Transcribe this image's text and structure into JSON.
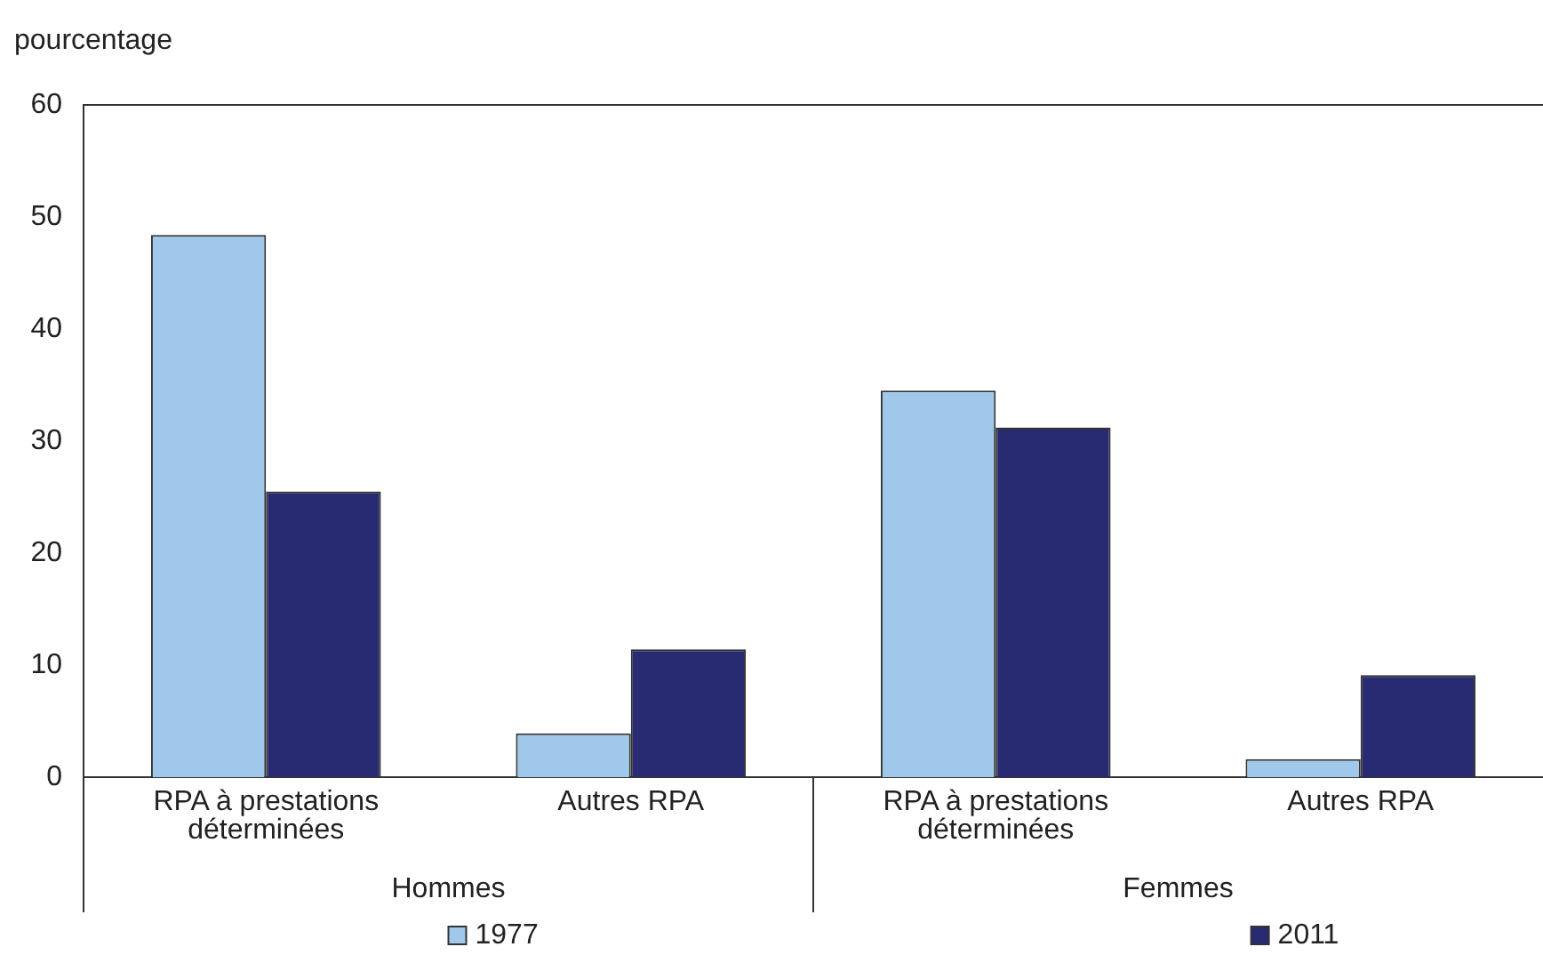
{
  "chart_data": {
    "type": "bar",
    "ylabel": "pourcentage",
    "categories": [
      "RPA à prestations déterminées",
      "Autres RPA",
      "RPA à prestations déterminées",
      "Autres RPA"
    ],
    "annotations": [
      "Hommes",
      "Femmes"
    ],
    "series": [
      {
        "name": "1977",
        "color": "#9fc8ea",
        "values": [
          48.4,
          3.9,
          34.5,
          1.6
        ]
      },
      {
        "name": "2011",
        "color": "#282a72",
        "values": [
          25.5,
          11.4,
          31.2,
          9.1
        ]
      }
    ],
    "ylim": [
      0,
      60
    ],
    "yticks": [
      0,
      10,
      20,
      30,
      40,
      50,
      60
    ],
    "grid": false,
    "legend": "bottom"
  }
}
